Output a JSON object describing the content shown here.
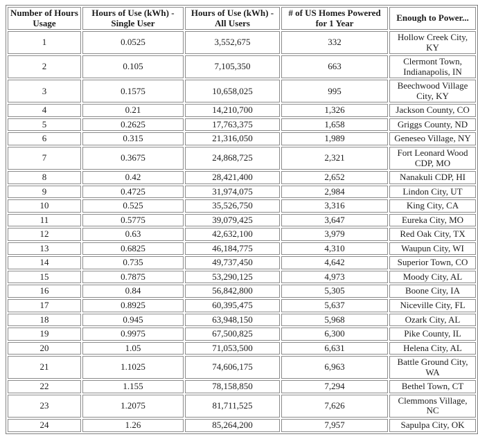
{
  "styles": {
    "border_color": "#8a8a8a",
    "text_color": "#1c1c1c",
    "background_color": "#ffffff"
  },
  "chart_data": {
    "type": "table",
    "title": "",
    "headers": [
      "Number of Hours Usage",
      "Hours of Use (kWh) - Single User",
      "Hours of Use (kWh) - All Users",
      "# of US Homes Powered for 1 Year",
      "Enough to Power..."
    ],
    "rows": [
      [
        "1",
        "0.0525",
        "3,552,675",
        "332",
        "Hollow Creek City, KY"
      ],
      [
        "2",
        "0.105",
        "7,105,350",
        "663",
        "Clermont Town, Indianapolis, IN"
      ],
      [
        "3",
        "0.1575",
        "10,658,025",
        "995",
        "Beechwood Village City, KY"
      ],
      [
        "4",
        "0.21",
        "14,210,700",
        "1,326",
        "Jackson County, CO"
      ],
      [
        "5",
        "0.2625",
        "17,763,375",
        "1,658",
        "Griggs County, ND"
      ],
      [
        "6",
        "0.315",
        "21,316,050",
        "1,989",
        "Geneseo Village, NY"
      ],
      [
        "7",
        "0.3675",
        "24,868,725",
        "2,321",
        "Fort Leonard Wood CDP, MO"
      ],
      [
        "8",
        "0.42",
        "28,421,400",
        "2,652",
        "Nanakuli CDP, HI"
      ],
      [
        "9",
        "0.4725",
        "31,974,075",
        "2,984",
        "Lindon City, UT"
      ],
      [
        "10",
        "0.525",
        "35,526,750",
        "3,316",
        "King City, CA"
      ],
      [
        "11",
        "0.5775",
        "39,079,425",
        "3,647",
        "Eureka City, MO"
      ],
      [
        "12",
        "0.63",
        "42,632,100",
        "3,979",
        "Red Oak City, TX"
      ],
      [
        "13",
        "0.6825",
        "46,184,775",
        "4,310",
        "Waupun City, WI"
      ],
      [
        "14",
        "0.735",
        "49,737,450",
        "4,642",
        "Superior Town, CO"
      ],
      [
        "15",
        "0.7875",
        "53,290,125",
        "4,973",
        "Moody City, AL"
      ],
      [
        "16",
        "0.84",
        "56,842,800",
        "5,305",
        "Boone City, IA"
      ],
      [
        "17",
        "0.8925",
        "60,395,475",
        "5,637",
        "Niceville City, FL"
      ],
      [
        "18",
        "0.945",
        "63,948,150",
        "5,968",
        "Ozark City, AL"
      ],
      [
        "19",
        "0.9975",
        "67,500,825",
        "6,300",
        "Pike County, IL"
      ],
      [
        "20",
        "1.05",
        "71,053,500",
        "6,631",
        "Helena City, AL"
      ],
      [
        "21",
        "1.1025",
        "74,606,175",
        "6,963",
        "Battle Ground City, WA"
      ],
      [
        "22",
        "1.155",
        "78,158,850",
        "7,294",
        "Bethel Town, CT"
      ],
      [
        "23",
        "1.2075",
        "81,711,525",
        "7,626",
        "Clemmons Village, NC"
      ],
      [
        "24",
        "1.26",
        "85,264,200",
        "7,957",
        "Sapulpa City, OK"
      ]
    ]
  }
}
